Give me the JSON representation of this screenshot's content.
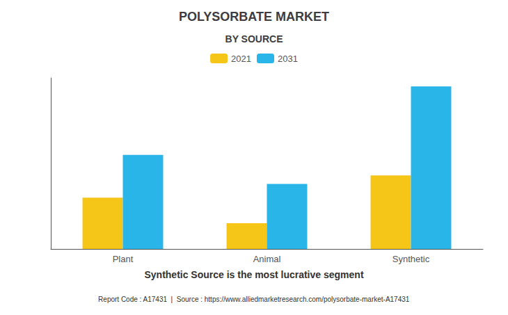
{
  "chart_data": {
    "type": "bar",
    "title": "POLYSORBATE MARKET",
    "subtitle": "BY SOURCE",
    "categories": [
      "Plant",
      "Animal",
      "Synthetic"
    ],
    "series": [
      {
        "name": "2021",
        "color": "#F5C518",
        "values": [
          30,
          15,
          43
        ]
      },
      {
        "name": "2031",
        "color": "#29B5E8",
        "values": [
          55,
          38,
          95
        ]
      }
    ],
    "ylim": [
      0,
      100
    ],
    "grid": false,
    "tick_labels": "x",
    "legend": "top",
    "annotations": [
      "Synthetic Source is the most lucrative segment",
      "Report Code : A17431  |  Source : https://www.alliedmarketresearch.com/polysorbate-market-A17431"
    ]
  }
}
